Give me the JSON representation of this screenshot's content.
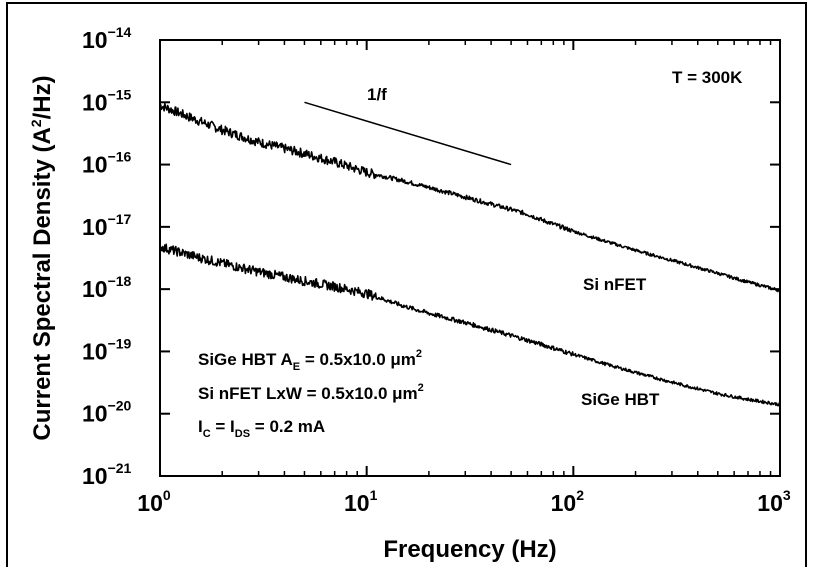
{
  "chart_data": {
    "type": "line",
    "xlabel": "Frequency (Hz)",
    "ylabel_main": "Current Spectral Density (A",
    "ylabel_sup": "2",
    "ylabel_end": "/Hz)",
    "xscale": "log",
    "yscale": "log",
    "xlim": [
      1,
      1000
    ],
    "ylim": [
      1e-21,
      1e-14
    ],
    "grid": false,
    "x_ticks": [
      {
        "base": "10",
        "exp": "0"
      },
      {
        "base": "10",
        "exp": "1"
      },
      {
        "base": "10",
        "exp": "2"
      },
      {
        "base": "10",
        "exp": "3"
      }
    ],
    "y_ticks": [
      {
        "base": "10",
        "exp": "−14",
        "value": 1e-14
      },
      {
        "base": "10",
        "exp": "−15",
        "value": 1e-15
      },
      {
        "base": "10",
        "exp": "−16",
        "value": 1e-16
      },
      {
        "base": "10",
        "exp": "−17",
        "value": 1e-17
      },
      {
        "base": "10",
        "exp": "−18",
        "value": 1e-18
      },
      {
        "base": "10",
        "exp": "−19",
        "value": 1e-19
      },
      {
        "base": "10",
        "exp": "−20",
        "value": 1e-20
      },
      {
        "base": "10",
        "exp": "−21",
        "value": 1e-21
      }
    ],
    "series": [
      {
        "name": "Si nFET",
        "x": [
          1,
          1.5,
          2,
          3,
          5,
          7,
          10,
          15,
          20,
          30,
          50,
          60,
          70,
          100,
          150,
          200,
          300,
          500,
          700,
          1000
        ],
        "y": [
          9e-16,
          5.2e-16,
          3.6e-16,
          2.3e-16,
          1.5e-16,
          1.1e-16,
          7.5e-17,
          5.5e-17,
          4.3e-17,
          3e-17,
          1.9e-17,
          1.6e-17,
          1.3e-17,
          8.5e-18,
          5.6e-18,
          4.2e-18,
          2.9e-18,
          1.8e-18,
          1.3e-18,
          9.5e-19
        ]
      },
      {
        "name": "SiGe HBT",
        "x": [
          1,
          1.5,
          2,
          3,
          5,
          7,
          10,
          15,
          20,
          30,
          50,
          70,
          100,
          150,
          200,
          300,
          500,
          700,
          1000
        ],
        "y": [
          4.8e-18,
          3.3e-18,
          2.6e-18,
          1.9e-18,
          1.35e-18,
          1.1e-18,
          8.5e-19,
          5.4e-19,
          4.1e-19,
          2.9e-19,
          1.8e-19,
          1.3e-19,
          9e-20,
          6e-20,
          4.6e-20,
          3.2e-20,
          2.1e-20,
          1.7e-20,
          1.4e-20
        ]
      }
    ],
    "slope_line": {
      "label": "1/f",
      "x": [
        5,
        50
      ],
      "y": [
        1e-15,
        1e-16
      ]
    },
    "annotations": {
      "temperature": "T = 300K",
      "series_label_nfet": "Si nFET",
      "series_label_hbt": "SiGe HBT",
      "line1_a": "SiGe HBT A",
      "line1_sub": "E",
      "line1_b": " = 0.5x10.0 μm",
      "line1_sup": "2",
      "line2_a": "Si nFET LxW = 0.5x10.0 μm",
      "line2_sup": "2",
      "line3_a": "I",
      "line3_sub1": "C",
      "line3_b": " = I",
      "line3_sub2": "DS",
      "line3_c": " = 0.2 mA"
    }
  }
}
